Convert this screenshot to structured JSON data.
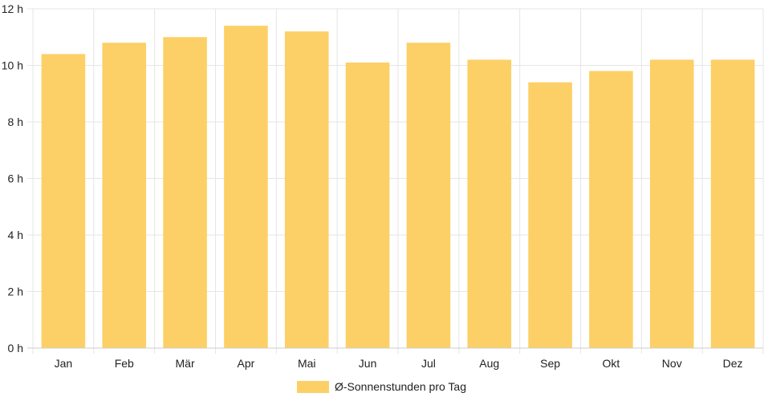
{
  "colors": {
    "bar": "#fcd066",
    "grid": "#e6e6e6",
    "text": "#222222"
  },
  "chart_data": {
    "type": "bar",
    "categories": [
      "Jan",
      "Feb",
      "Mär",
      "Apr",
      "Mai",
      "Jun",
      "Jul",
      "Aug",
      "Sep",
      "Okt",
      "Nov",
      "Dez"
    ],
    "series": [
      {
        "name": "Ø-Sonnenstunden pro Tag",
        "values": [
          10.4,
          10.8,
          11.0,
          11.4,
          11.2,
          10.1,
          10.8,
          10.2,
          9.4,
          9.8,
          10.2,
          10.2
        ]
      }
    ],
    "y_ticks": [
      "0 h",
      "2 h",
      "4 h",
      "6 h",
      "8 h",
      "10 h",
      "12 h"
    ],
    "ylim": [
      0,
      12
    ],
    "grid": true,
    "legend_position": "bottom-center"
  }
}
